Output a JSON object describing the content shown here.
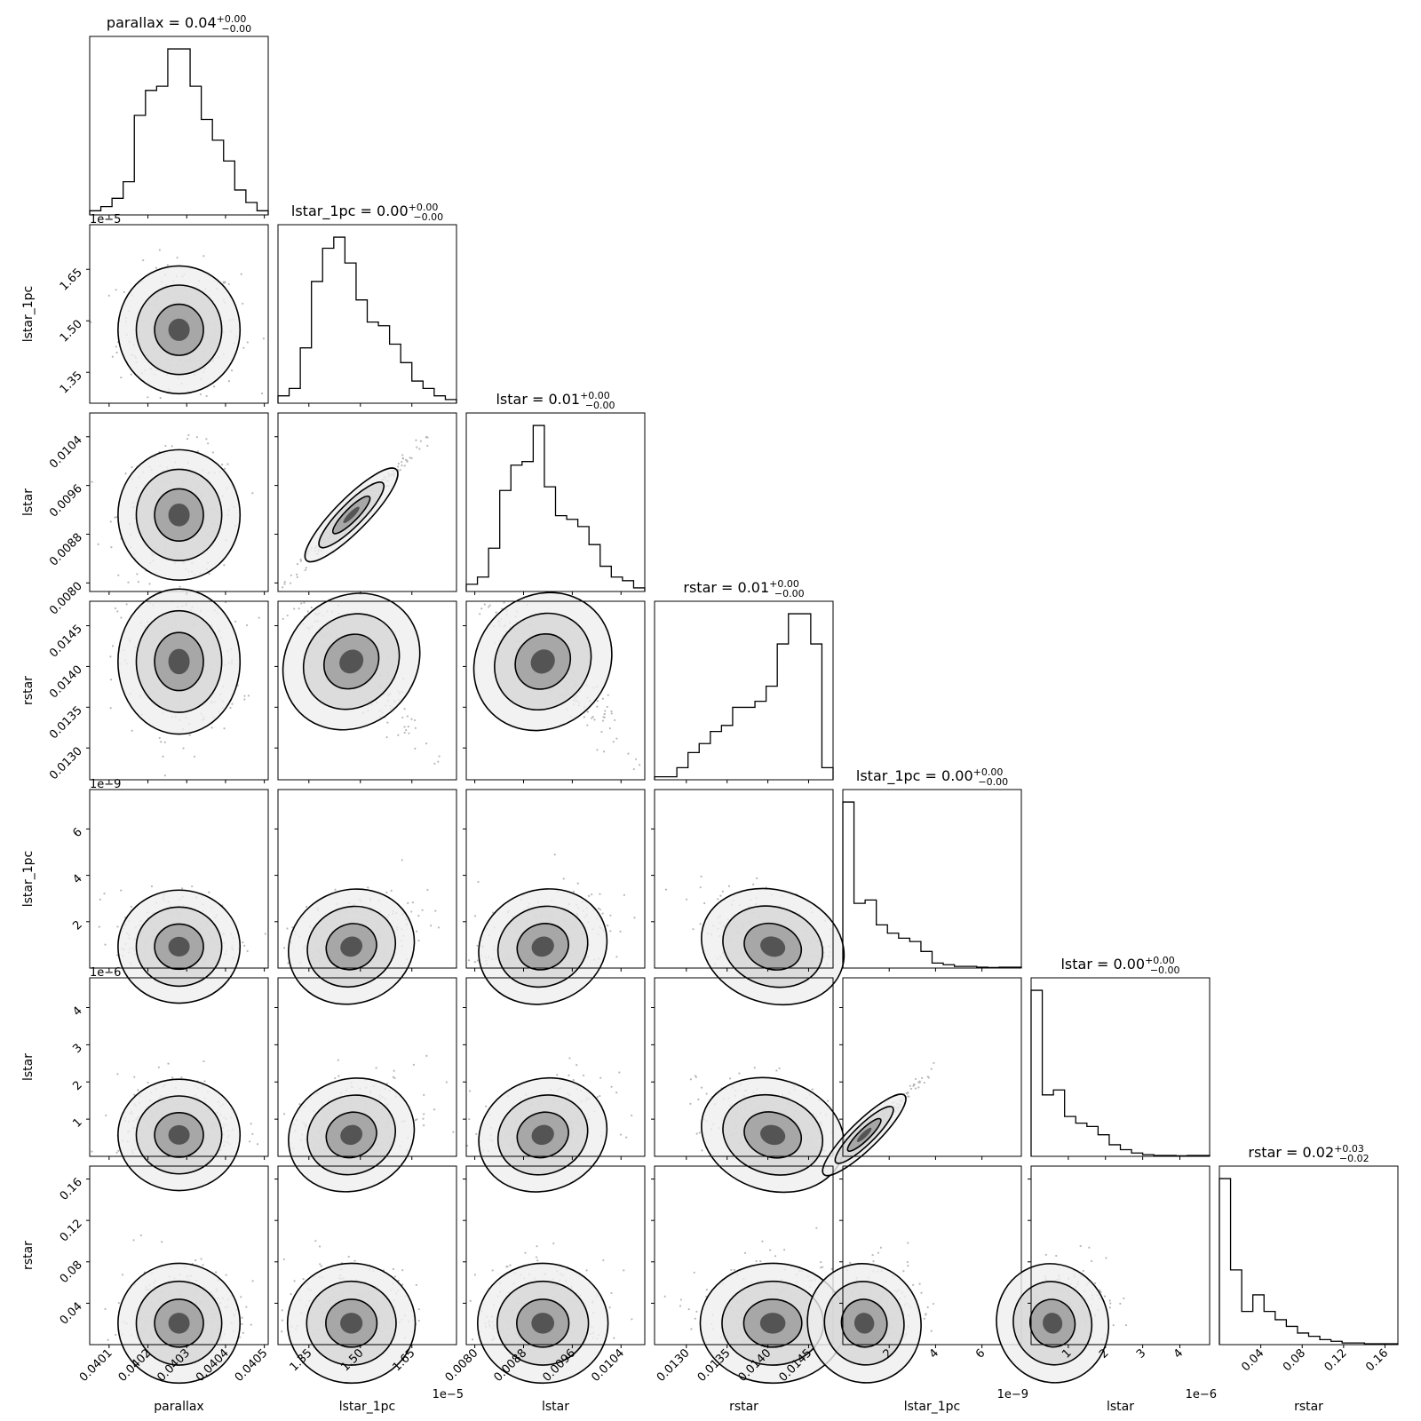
{
  "chart_data": {
    "type": "corner",
    "parameters": [
      {
        "name": "parallax",
        "title": {
          "main": "parallax = 0.04",
          "sup": "+0.00",
          "sub": "−0.00"
        },
        "range": [
          0.04005,
          0.04051
        ],
        "ticks": [
          0.0401,
          0.0402,
          0.0403,
          0.0404,
          0.0405
        ],
        "tick_labels": [
          "0.0401",
          "0.0402",
          "0.0403",
          "0.0404",
          "0.0405"
        ],
        "offset": "",
        "hist": [
          1,
          2,
          4,
          8,
          24,
          30,
          31,
          40,
          40,
          31,
          23,
          18,
          13,
          6,
          3,
          1
        ]
      },
      {
        "name": "lstar_1pc",
        "title": {
          "main": "lstar_1pc = 0.00",
          "sup": "+0.00",
          "sub": "−0.00"
        },
        "range": [
          1.26e-05,
          1.78e-05
        ],
        "ticks": [
          1.35e-05,
          1.5e-05,
          1.65e-05
        ],
        "tick_labels": [
          "1.35",
          "1.50",
          "1.65"
        ],
        "offset": "1e−5",
        "hist": [
          2,
          4,
          15,
          33,
          42,
          45,
          38,
          28,
          22,
          21,
          16,
          11,
          6,
          4,
          2,
          1
        ]
      },
      {
        "name": "lstar",
        "title": {
          "main": "lstar = 0.01",
          "sup": "+0.00",
          "sub": "−0.00"
        },
        "range": [
          0.00786,
          0.01079
        ],
        "ticks": [
          0.008,
          0.0088,
          0.0096,
          0.0104
        ],
        "tick_labels": [
          "0.0080",
          "0.0088",
          "0.0096",
          "0.0104"
        ],
        "offset": "",
        "hist": [
          2,
          4,
          12,
          28,
          35,
          36,
          46,
          29,
          21,
          20,
          18,
          13,
          7,
          4,
          3,
          1
        ]
      },
      {
        "name": "rstar",
        "title": {
          "main": "rstar = 0.01",
          "sup": "+0.00",
          "sub": "−0.00"
        },
        "range": [
          0.01261,
          0.0148
        ],
        "ticks": [
          0.013,
          0.0135,
          0.014,
          0.0145
        ],
        "tick_labels": [
          "0.0130",
          "0.0135",
          "0.0140",
          "0.0145"
        ],
        "offset": "",
        "hist": [
          1,
          1,
          4,
          9,
          12,
          16,
          18,
          24,
          24,
          26,
          31,
          45,
          55,
          55,
          45,
          4
        ]
      },
      {
        "name": "lstar_1pc",
        "title": {
          "main": "lstar_1pc = 0.00",
          "sup": "+0.00",
          "sub": "−0.00"
        },
        "range": [
          0,
          7.7e-09
        ],
        "ticks": [
          2e-09,
          4e-09,
          6e-09
        ],
        "tick_labels": [
          "2",
          "4",
          "6"
        ],
        "offset": "1e−9",
        "hist": [
          100,
          39,
          41,
          26,
          21,
          18,
          16,
          10,
          3,
          2,
          1,
          1,
          0.5,
          0.3,
          0.5,
          0.5
        ]
      },
      {
        "name": "lstar",
        "title": {
          "main": "lstar = 0.00",
          "sup": "+0.00",
          "sub": "−0.00"
        },
        "range": [
          0,
          4.8e-06
        ],
        "ticks": [
          1e-06,
          2e-06,
          3e-06,
          4e-06
        ],
        "tick_labels": [
          "1",
          "2",
          "3",
          "4"
        ],
        "offset": "1e−6",
        "hist": [
          100,
          37,
          40,
          24,
          20,
          18,
          13,
          7,
          4,
          2,
          1,
          0.5,
          0.5,
          0.3,
          0.5,
          0.5
        ]
      },
      {
        "name": "rstar",
        "title": {
          "main": "rstar = 0.02",
          "sup": "+0.03",
          "sub": "−0.02"
        },
        "range": [
          0,
          0.1725
        ],
        "ticks": [
          0.04,
          0.08,
          0.12,
          0.16
        ],
        "tick_labels": [
          "0.04",
          "0.08",
          "0.12",
          "0.16"
        ],
        "offset": "",
        "hist": [
          100,
          45,
          20,
          30,
          20,
          15,
          11,
          7,
          5,
          3,
          2,
          1,
          1,
          0.5,
          0.5,
          0.5
        ]
      }
    ],
    "histogram_type": "step",
    "pair_plots": "2D histograms with contour levels",
    "colors": {
      "line": "#000000",
      "points": "#b0b0b0",
      "background": "#ffffff"
    }
  }
}
